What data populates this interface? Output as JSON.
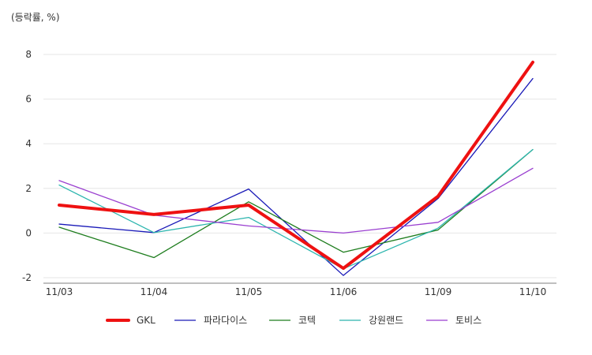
{
  "chart_data": {
    "type": "line",
    "unit_label": "(등락률, %)",
    "categories": [
      "11/03",
      "11/04",
      "11/05",
      "11/06",
      "11/09",
      "11/10"
    ],
    "ylim": [
      -2,
      8
    ],
    "yticks": [
      -2,
      0,
      2,
      4,
      6,
      8
    ],
    "grid": true,
    "legend_position": "bottom",
    "series": [
      {
        "name": "GKL",
        "color": "#ee1111",
        "emphasis": true,
        "values": [
          1.25,
          0.83,
          1.25,
          -1.58,
          1.65,
          7.65
        ]
      },
      {
        "name": "파라다이스",
        "color": "#1a1ab8",
        "values": [
          0.4,
          0.02,
          1.97,
          -1.9,
          1.55,
          6.92
        ]
      },
      {
        "name": "코텍",
        "color": "#1e7d1e",
        "values": [
          0.26,
          -1.1,
          1.4,
          -0.86,
          0.14,
          3.74
        ]
      },
      {
        "name": "강원랜드",
        "color": "#2cb5ae",
        "values": [
          2.15,
          0.02,
          0.7,
          -1.6,
          0.22,
          3.74
        ]
      },
      {
        "name": "토비스",
        "color": "#9a3fd0",
        "values": [
          2.35,
          0.8,
          0.32,
          0.0,
          0.48,
          2.9
        ]
      }
    ]
  }
}
